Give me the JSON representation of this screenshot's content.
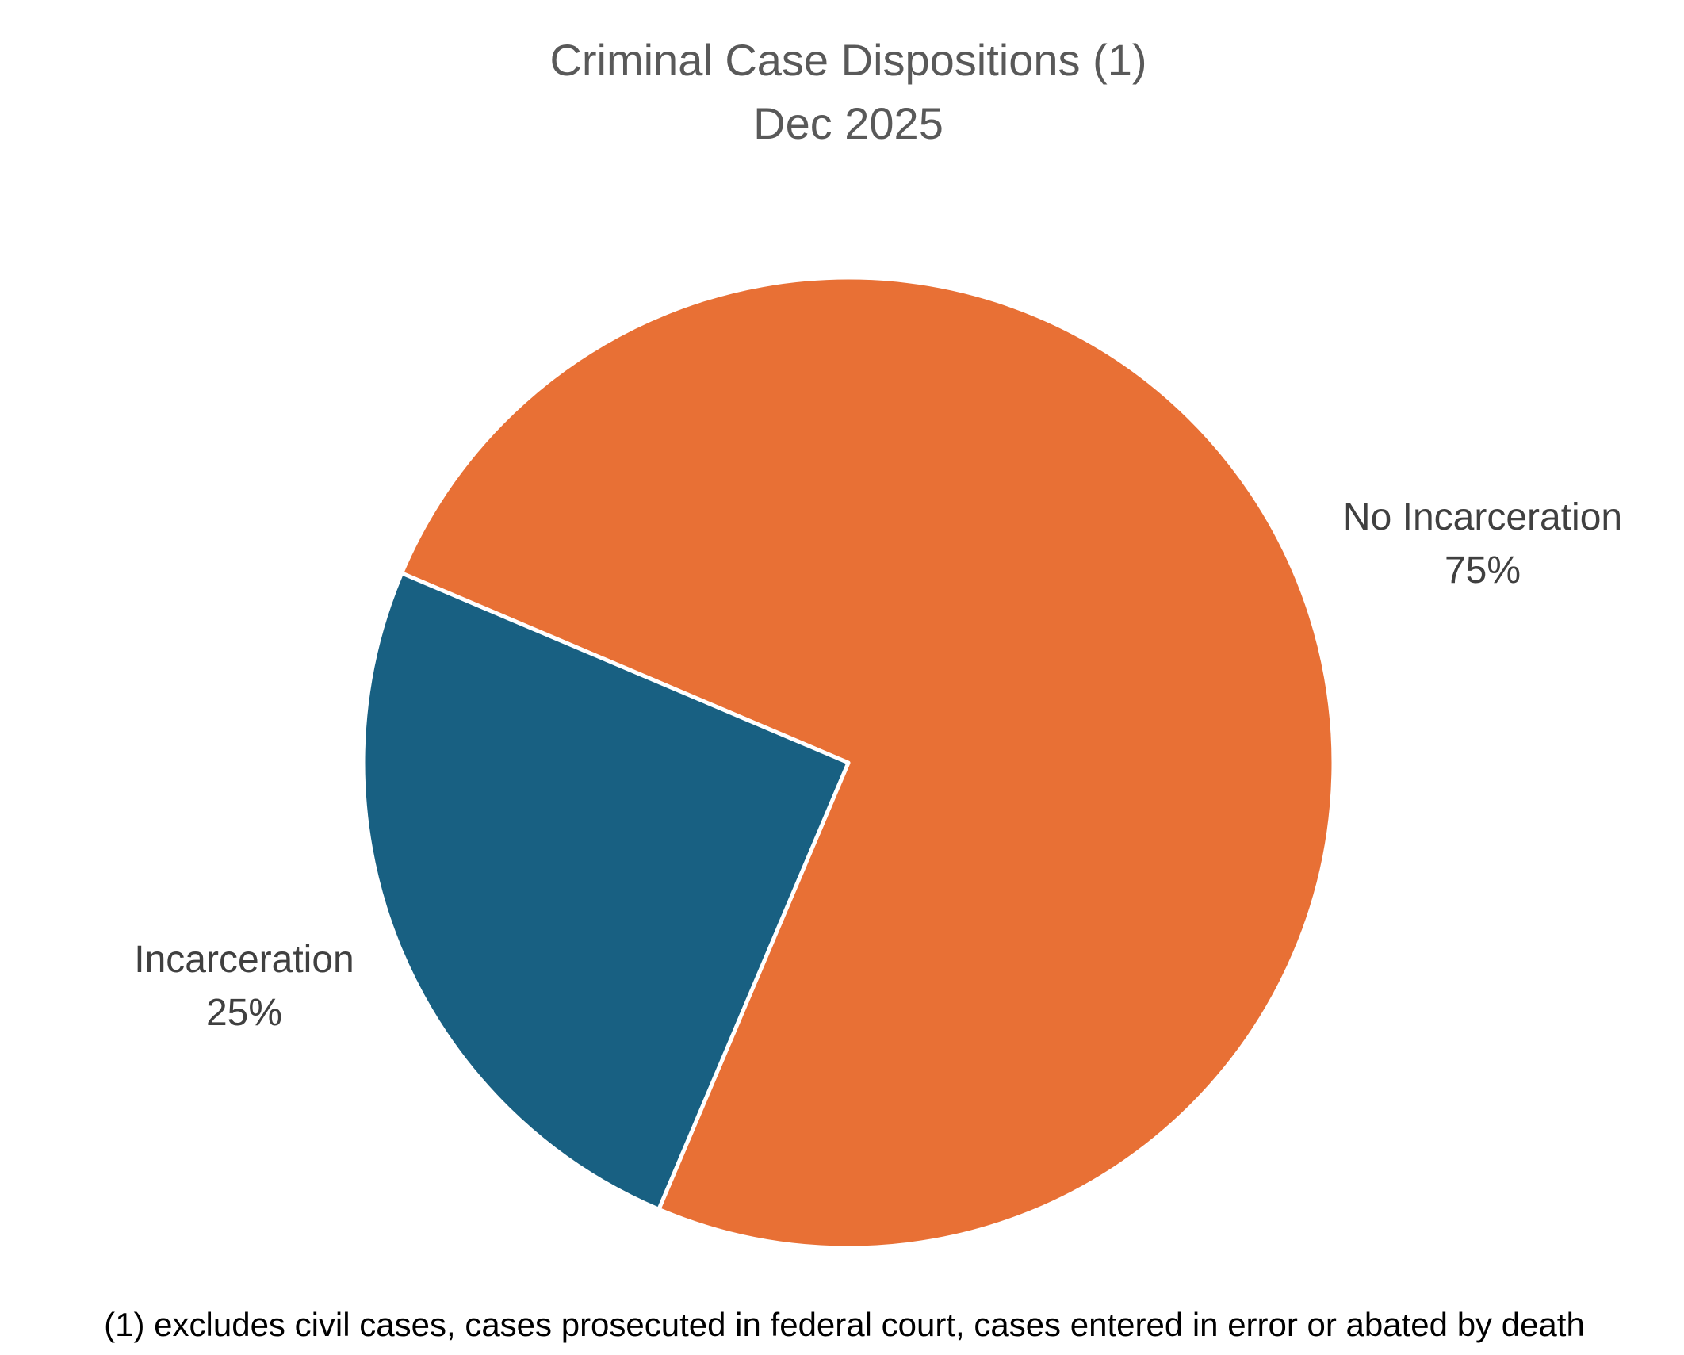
{
  "chart_data": {
    "type": "pie",
    "title": "Criminal Case Dispositions (1)",
    "subtitle": "Dec 2025",
    "slices": [
      {
        "label": "No Incarceration",
        "value": 75,
        "value_label": "75%",
        "color": "#E87035"
      },
      {
        "label": "Incarceration",
        "value": 25,
        "value_label": "25%",
        "color": "#186082"
      }
    ],
    "start_angle_deg": -67,
    "direction": "clockwise",
    "slice_border_color": "#ffffff",
    "legend": "none",
    "footnote": "(1) excludes civil cases, cases prosecuted in federal court, cases entered in error or abated by death"
  }
}
